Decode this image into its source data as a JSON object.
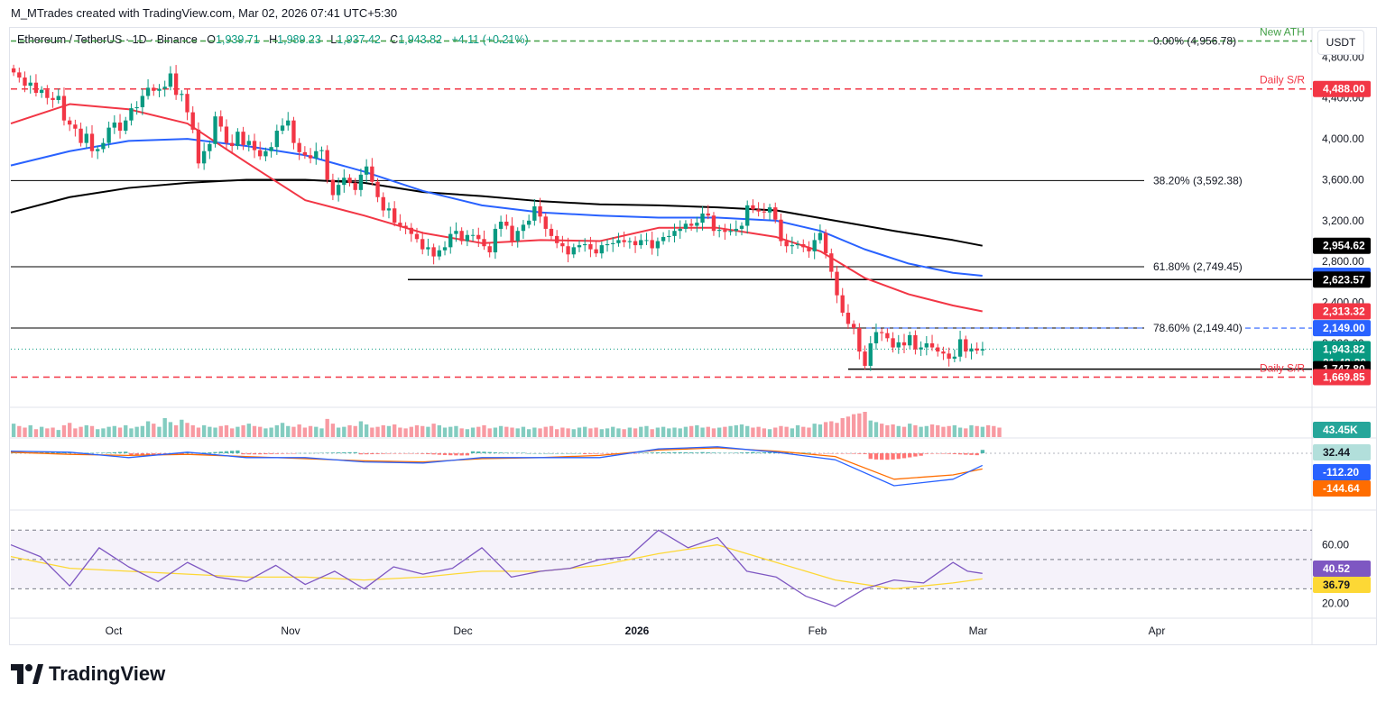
{
  "header": {
    "credit": "M_MTrades created with TradingView.com, Mar 02, 2026 07:41 UTC+5:30",
    "symbol": "Ethereum / TetherUS · 1D · Binance",
    "o_label": "O",
    "o_value": "1,939.71",
    "h_label": "H",
    "h_value": "1,989.23",
    "l_label": "L",
    "l_value": "1,937.42",
    "c_label": "C",
    "c_value": "1,943.82",
    "change": "+4.11 (+0.21%)",
    "currency": "USDT"
  },
  "brand": {
    "name": "TradingView",
    "icon": "tradingview-logo-icon"
  },
  "colors": {
    "up": "#089981",
    "down": "#f23645",
    "ema_red": "#f23645",
    "ema_blue": "#2962ff",
    "ema_black": "#000000",
    "ath_green": "#43a047",
    "macd_blue": "#2962ff",
    "signal_orange": "#ff6d00",
    "rsi_purple": "#7e57c2",
    "rsi_ma_yellow": "#fdd835"
  },
  "chart_data": [
    {
      "type": "line",
      "title": "Ethereum / TetherUS · 1D · Binance",
      "ylim": [
        1480,
        4900
      ],
      "x_ticks": [
        "Oct",
        "Nov",
        "Dec",
        "2026",
        "Feb",
        "Mar",
        "Apr"
      ],
      "y_ticks": [
        "4,800.00",
        "4,400.00",
        "4,000.00",
        "3,600.00",
        "3,200.00",
        "2,800.00",
        "2,400.00",
        "2,000.00"
      ],
      "close": [
        4650,
        4600,
        4520,
        4550,
        4450,
        4480,
        4400,
        4380,
        4420,
        4180,
        4140,
        4100,
        3960,
        4050,
        3880,
        3900,
        3960,
        4110,
        4160,
        4080,
        4180,
        4300,
        4310,
        4420,
        4500,
        4470,
        4490,
        4510,
        4640,
        4430,
        4440,
        4260,
        4090,
        3760,
        3880,
        3950,
        4220,
        4120,
        3960,
        3930,
        4070,
        3940,
        3980,
        3890,
        3830,
        3880,
        3920,
        4080,
        4130,
        4180,
        3960,
        3870,
        3840,
        3810,
        3880,
        3890,
        3600,
        3450,
        3550,
        3620,
        3570,
        3500,
        3650,
        3730,
        3580,
        3430,
        3300,
        3320,
        3180,
        3150,
        3130,
        3070,
        3020,
        2920,
        2940,
        2850,
        2910,
        2940,
        3070,
        3100,
        3000,
        3060,
        3060,
        3020,
        2950,
        2890,
        3120,
        3190,
        3150,
        3000,
        3100,
        3160,
        3200,
        3340,
        3240,
        3120,
        3050,
        2980,
        2950,
        2870,
        2940,
        2960,
        2970,
        2920,
        2880,
        2960,
        2970,
        2980,
        3010,
        2990,
        3000,
        2960,
        3010,
        3010,
        2930,
        3000,
        3040,
        3050,
        3100,
        3120,
        3170,
        3150,
        3180,
        3270,
        3250,
        3100,
        3110,
        3090,
        3100,
        3120,
        3150,
        3350,
        3310,
        3290,
        3280,
        3330,
        3210,
        3000,
        2950,
        2960,
        2970,
        2940,
        2900,
        3010,
        3080,
        2880,
        2700,
        2470,
        2300,
        2190,
        2150,
        1920,
        1780,
        2000,
        2110,
        2100,
        2050,
        1960,
        2010,
        1980,
        2080,
        1940,
        1960,
        2000,
        1960,
        1920,
        1900,
        1850,
        1870,
        2040,
        1920,
        1950,
        1930,
        1943.82
      ],
      "ema_red": [
        [
          0,
          4150
        ],
        [
          20,
          4340
        ],
        [
          40,
          4290
        ],
        [
          60,
          4150
        ],
        [
          80,
          3770
        ],
        [
          100,
          3400
        ],
        [
          120,
          3250
        ],
        [
          140,
          3080
        ],
        [
          160,
          2980
        ],
        [
          180,
          3010
        ],
        [
          200,
          3000
        ],
        [
          220,
          3130
        ],
        [
          240,
          3130
        ],
        [
          260,
          3040
        ],
        [
          275,
          2900
        ],
        [
          290,
          2640
        ],
        [
          305,
          2480
        ],
        [
          320,
          2370
        ],
        [
          330,
          2313.32
        ]
      ],
      "ema_blue": [
        [
          0,
          3740
        ],
        [
          20,
          3880
        ],
        [
          40,
          3980
        ],
        [
          60,
          4000
        ],
        [
          80,
          3930
        ],
        [
          100,
          3840
        ],
        [
          120,
          3680
        ],
        [
          140,
          3490
        ],
        [
          160,
          3350
        ],
        [
          180,
          3280
        ],
        [
          200,
          3250
        ],
        [
          220,
          3230
        ],
        [
          240,
          3230
        ],
        [
          260,
          3200
        ],
        [
          275,
          3100
        ],
        [
          290,
          2920
        ],
        [
          305,
          2780
        ],
        [
          320,
          2690
        ],
        [
          330,
          2660.85
        ]
      ],
      "ema_black": [
        [
          0,
          3280
        ],
        [
          20,
          3430
        ],
        [
          40,
          3520
        ],
        [
          60,
          3570
        ],
        [
          80,
          3600
        ],
        [
          100,
          3600
        ],
        [
          120,
          3570
        ],
        [
          140,
          3480
        ],
        [
          160,
          3440
        ],
        [
          180,
          3390
        ],
        [
          200,
          3360
        ],
        [
          220,
          3350
        ],
        [
          240,
          3330
        ],
        [
          260,
          3300
        ],
        [
          280,
          3200
        ],
        [
          300,
          3100
        ],
        [
          320,
          3010
        ],
        [
          330,
          2954.62
        ]
      ],
      "levels": [
        {
          "label": "0.00% (4,956.78)",
          "value": 4956.78
        },
        {
          "label": "38.20% (3,592.38)",
          "value": 3592.38
        },
        {
          "label": "61.80% (2,749.45)",
          "value": 2749.45
        },
        {
          "label": "78.60% (2,149.40)",
          "value": 2149.4
        }
      ],
      "support_lines": [
        2623.57,
        1747.8
      ],
      "annotations": [
        "New ATH",
        "Daily S/R",
        "Daily S/R"
      ],
      "price_badges": [
        {
          "label": "4,488.00",
          "value": 4488.0,
          "color": "#f23645"
        },
        {
          "label": "2,954.62",
          "value": 2954.62,
          "color": "#000000"
        },
        {
          "label": "2,660.85",
          "value": 2660.85,
          "color": "#2962ff"
        },
        {
          "label": "2,623.57",
          "value": 2623.57,
          "color": "#000000"
        },
        {
          "label": "2,313.32",
          "value": 2313.32,
          "color": "#f23645"
        },
        {
          "label": "2,149.00",
          "value": 2149.0,
          "color": "#2962ff"
        },
        {
          "label": "1,943.82",
          "value": 1943.82,
          "color": "#089981"
        },
        {
          "label": "21:48:20",
          "value": 1943.82,
          "color": "#089981"
        },
        {
          "label": "1,747.80",
          "value": 1747.8,
          "color": "#000000"
        },
        {
          "label": "1,669.85",
          "value": 1669.85,
          "color": "#f23645"
        }
      ]
    },
    {
      "type": "bar",
      "title": "Volume",
      "last_label": "43.45K",
      "values": [
        34,
        28,
        24,
        30,
        20,
        26,
        22,
        24,
        18,
        30,
        36,
        22,
        26,
        30,
        28,
        20,
        22,
        26,
        28,
        24,
        30,
        22,
        26,
        28,
        40,
        34,
        26,
        48,
        38,
        30,
        44,
        36,
        30,
        24,
        30,
        26,
        24,
        28,
        30,
        22,
        26,
        30,
        34,
        28,
        26,
        22,
        24,
        30,
        36,
        28,
        26,
        32,
        24,
        28,
        26,
        22,
        46,
        34,
        24,
        26,
        30,
        28,
        40,
        32,
        24,
        26,
        30,
        28,
        32,
        24,
        22,
        26,
        30,
        28,
        26,
        34,
        30,
        24,
        26,
        28,
        22,
        20,
        24,
        26,
        30,
        22,
        24,
        28,
        26,
        24,
        22,
        26,
        20,
        24,
        22,
        26,
        28,
        20,
        24,
        22,
        20,
        24,
        26,
        22,
        24,
        20,
        22,
        26,
        22,
        20,
        24,
        22,
        26,
        28,
        20,
        24,
        26,
        22,
        24,
        22,
        26,
        28,
        30,
        24,
        26,
        22,
        24,
        26,
        28,
        30,
        32,
        28,
        24,
        26,
        22,
        20,
        24,
        28,
        26,
        22,
        30,
        26,
        24,
        34,
        32,
        38,
        40,
        36,
        48,
        52,
        58,
        60,
        64,
        42,
        38,
        34,
        30,
        32,
        28,
        26,
        34,
        30,
        26,
        28,
        32,
        30,
        26,
        28,
        30,
        24,
        22,
        30,
        28,
        26,
        30,
        28,
        24
      ]
    },
    {
      "type": "line",
      "title": "MACD",
      "labels": [
        "32.44",
        "-112.20",
        "-144.64"
      ],
      "macd": [
        [
          0,
          20
        ],
        [
          20,
          10
        ],
        [
          40,
          -40
        ],
        [
          60,
          10
        ],
        [
          80,
          -40
        ],
        [
          100,
          -40
        ],
        [
          120,
          -80
        ],
        [
          140,
          -90
        ],
        [
          160,
          -40
        ],
        [
          180,
          -40
        ],
        [
          200,
          -40
        ],
        [
          220,
          40
        ],
        [
          240,
          60
        ],
        [
          260,
          10
        ],
        [
          280,
          -60
        ],
        [
          300,
          -300
        ],
        [
          320,
          -240
        ],
        [
          330,
          -112.2
        ]
      ],
      "signal": [
        [
          0,
          10
        ],
        [
          20,
          -10
        ],
        [
          40,
          -20
        ],
        [
          60,
          -10
        ],
        [
          80,
          -30
        ],
        [
          100,
          -50
        ],
        [
          120,
          -70
        ],
        [
          140,
          -80
        ],
        [
          160,
          -50
        ],
        [
          180,
          -40
        ],
        [
          200,
          -20
        ],
        [
          220,
          30
        ],
        [
          240,
          50
        ],
        [
          260,
          20
        ],
        [
          280,
          -30
        ],
        [
          300,
          -240
        ],
        [
          320,
          -200
        ],
        [
          330,
          -144.64
        ]
      ],
      "histogram": [
        10,
        20,
        -20,
        30,
        -10,
        10,
        -10,
        -20,
        20,
        0,
        -10,
        10,
        20,
        10,
        -10,
        -60,
        -20,
        32.44
      ]
    },
    {
      "type": "line",
      "title": "RSI",
      "y_ticks": [
        "60.00",
        "20.00"
      ],
      "labels": [
        "40.52",
        "36.79"
      ],
      "ylim": [
        10,
        80
      ],
      "rsi": [
        [
          0,
          60
        ],
        [
          10,
          52
        ],
        [
          20,
          32
        ],
        [
          30,
          58
        ],
        [
          40,
          45
        ],
        [
          50,
          35
        ],
        [
          60,
          48
        ],
        [
          70,
          38
        ],
        [
          80,
          35
        ],
        [
          90,
          46
        ],
        [
          100,
          33
        ],
        [
          110,
          42
        ],
        [
          120,
          30
        ],
        [
          130,
          45
        ],
        [
          140,
          40
        ],
        [
          150,
          44
        ],
        [
          160,
          58
        ],
        [
          170,
          38
        ],
        [
          180,
          42
        ],
        [
          190,
          44
        ],
        [
          200,
          50
        ],
        [
          210,
          52
        ],
        [
          220,
          70
        ],
        [
          230,
          58
        ],
        [
          240,
          65
        ],
        [
          250,
          42
        ],
        [
          260,
          38
        ],
        [
          270,
          25
        ],
        [
          280,
          18
        ],
        [
          290,
          30
        ],
        [
          300,
          36
        ],
        [
          310,
          34
        ],
        [
          320,
          48
        ],
        [
          325,
          42
        ],
        [
          330,
          40.52
        ]
      ],
      "rsi_ma": [
        [
          0,
          52
        ],
        [
          20,
          44
        ],
        [
          40,
          42
        ],
        [
          60,
          40
        ],
        [
          80,
          38
        ],
        [
          100,
          38
        ],
        [
          120,
          36
        ],
        [
          140,
          38
        ],
        [
          160,
          42
        ],
        [
          180,
          42
        ],
        [
          200,
          46
        ],
        [
          220,
          54
        ],
        [
          240,
          60
        ],
        [
          260,
          48
        ],
        [
          280,
          36
        ],
        [
          300,
          30
        ],
        [
          320,
          34
        ],
        [
          330,
          36.79
        ]
      ]
    }
  ]
}
